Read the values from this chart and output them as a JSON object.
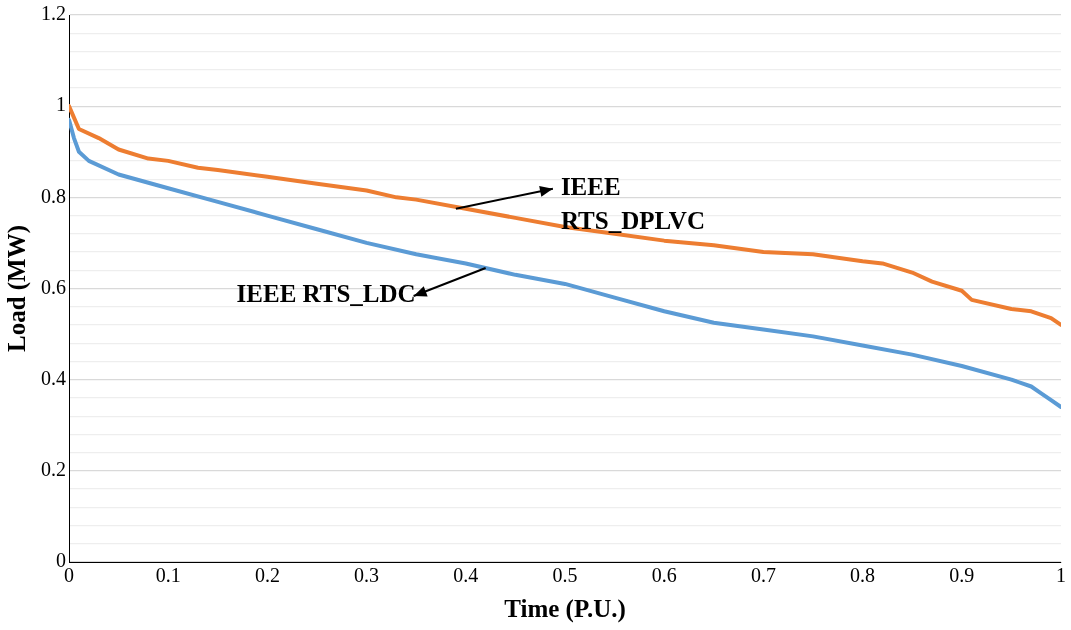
{
  "chart_data": {
    "type": "line",
    "xlabel": "Time (P.U.)",
    "ylabel": "Load (MW)",
    "xlim": [
      0,
      1
    ],
    "xticks": [
      0,
      0.1,
      0.2,
      0.3,
      0.4,
      0.5,
      0.6,
      0.7,
      0.8,
      0.9,
      1
    ],
    "ylim": [
      0,
      1.2
    ],
    "yticks": [
      0,
      {
        "value": 0.04,
        "label": null
      },
      {
        "value": 0.08,
        "label": null
      },
      {
        "value": 0.12,
        "label": null
      },
      {
        "value": 0.16,
        "label": null
      },
      0.2,
      {
        "value": 0.24,
        "label": null
      },
      {
        "value": 0.28,
        "label": null
      },
      {
        "value": 0.32,
        "label": null
      },
      {
        "value": 0.36,
        "label": null
      },
      0.4,
      {
        "value": 0.44,
        "label": null
      },
      {
        "value": 0.48,
        "label": null
      },
      {
        "value": 0.52,
        "label": null
      },
      {
        "value": 0.56,
        "label": null
      },
      0.6,
      {
        "value": 0.64,
        "label": null
      },
      {
        "value": 0.68,
        "label": null
      },
      {
        "value": 0.72,
        "label": null
      },
      {
        "value": 0.76,
        "label": null
      },
      0.8,
      {
        "value": 0.84,
        "label": null
      },
      {
        "value": 0.88,
        "label": null
      },
      {
        "value": 0.92,
        "label": null
      },
      {
        "value": 0.96,
        "label": null
      },
      1,
      {
        "value": 1.04,
        "label": null
      },
      {
        "value": 1.08,
        "label": null
      },
      {
        "value": 1.12,
        "label": null
      },
      {
        "value": 1.16,
        "label": null
      },
      1.2
    ],
    "grid": "y",
    "legend": false,
    "marker": "none",
    "line_style": "solid",
    "series": [
      {
        "color": "#ed7d31",
        "x": [
          0,
          0.01,
          0.03,
          0.05,
          0.08,
          0.1,
          0.13,
          0.15,
          0.2,
          0.25,
          0.3,
          0.33,
          0.35,
          0.4,
          0.45,
          0.5,
          0.55,
          0.6,
          0.65,
          0.7,
          0.75,
          0.8,
          0.82,
          0.85,
          0.87,
          0.9,
          0.91,
          0.95,
          0.97,
          0.99,
          1
        ],
        "values": [
          1.0,
          0.95,
          0.93,
          0.905,
          0.885,
          0.88,
          0.865,
          0.86,
          0.845,
          0.83,
          0.815,
          0.8,
          0.795,
          0.775,
          0.755,
          0.735,
          0.72,
          0.705,
          0.695,
          0.68,
          0.675,
          0.66,
          0.655,
          0.635,
          0.615,
          0.595,
          0.575,
          0.555,
          0.55,
          0.535,
          0.52
        ]
      },
      {
        "color": "#5b9bd5",
        "x": [
          0,
          0.005,
          0.01,
          0.02,
          0.05,
          0.1,
          0.15,
          0.2,
          0.25,
          0.3,
          0.35,
          0.4,
          0.45,
          0.5,
          0.55,
          0.6,
          0.65,
          0.7,
          0.75,
          0.8,
          0.85,
          0.9,
          0.95,
          0.97,
          0.98,
          0.99,
          1
        ],
        "values": [
          0.97,
          0.93,
          0.9,
          0.88,
          0.85,
          0.82,
          0.79,
          0.76,
          0.73,
          0.7,
          0.675,
          0.655,
          0.63,
          0.61,
          0.58,
          0.55,
          0.525,
          0.51,
          0.495,
          0.475,
          0.455,
          0.43,
          0.4,
          0.385,
          0.37,
          0.355,
          0.34
        ]
      }
    ],
    "annotations": [
      {
        "text": "IEEE RTS_DPLVC",
        "x": 0.39,
        "y": 0.775
      },
      {
        "text": "IEEE RTS_LDC",
        "x": 0.42,
        "y": 0.645
      }
    ]
  }
}
